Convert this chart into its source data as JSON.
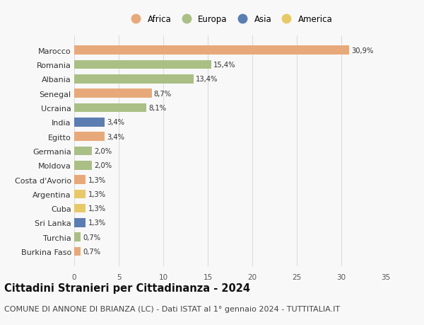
{
  "countries": [
    "Burkina Faso",
    "Turchia",
    "Sri Lanka",
    "Cuba",
    "Argentina",
    "Costa d'Avorio",
    "Moldova",
    "Germania",
    "Egitto",
    "India",
    "Ucraina",
    "Senegal",
    "Albania",
    "Romania",
    "Marocco"
  ],
  "values": [
    0.7,
    0.7,
    1.3,
    1.3,
    1.3,
    1.3,
    2.0,
    2.0,
    3.4,
    3.4,
    8.1,
    8.7,
    13.4,
    15.4,
    30.9
  ],
  "labels": [
    "0,7%",
    "0,7%",
    "1,3%",
    "1,3%",
    "1,3%",
    "1,3%",
    "2,0%",
    "2,0%",
    "3,4%",
    "3,4%",
    "8,1%",
    "8,7%",
    "13,4%",
    "15,4%",
    "30,9%"
  ],
  "continents": [
    "Africa",
    "Europa",
    "Asia",
    "America",
    "America",
    "Africa",
    "Europa",
    "Europa",
    "Africa",
    "Asia",
    "Europa",
    "Africa",
    "Europa",
    "Europa",
    "Africa"
  ],
  "continent_colors": {
    "Africa": "#E8A97A",
    "Europa": "#AABF85",
    "Asia": "#5B7DB1",
    "America": "#E8C96A"
  },
  "legend_order": [
    "Africa",
    "Europa",
    "Asia",
    "America"
  ],
  "title": "Cittadini Stranieri per Cittadinanza - 2024",
  "subtitle": "COMUNE DI ANNONE DI BRIANZA (LC) - Dati ISTAT al 1° gennaio 2024 - TUTTITALIA.IT",
  "xlim": [
    0,
    35
  ],
  "xticks": [
    0,
    5,
    10,
    15,
    20,
    25,
    30,
    35
  ],
  "background_color": "#f8f8f8",
  "grid_color": "#dddddd",
  "title_fontsize": 10.5,
  "subtitle_fontsize": 8,
  "bar_height": 0.62
}
